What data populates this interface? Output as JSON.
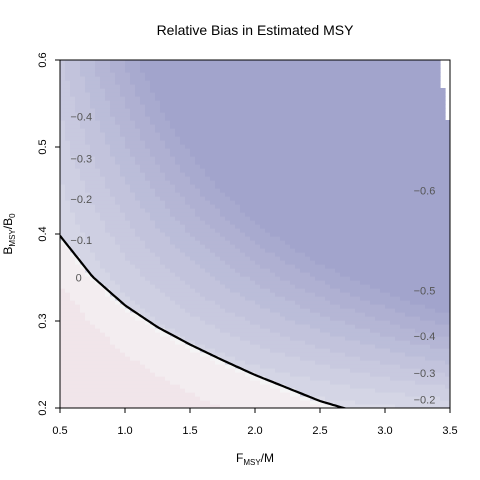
{
  "chart_data": {
    "type": "heatmap",
    "title": "Relative Bias in Estimated MSY",
    "xlabel": {
      "main": "F",
      "sub": "MSY",
      "suffix": "/M"
    },
    "ylabel": {
      "main": "B",
      "sub": "MSY",
      "mid": "/B",
      "sub2": "0"
    },
    "xlim": [
      0.5,
      3.5
    ],
    "ylim": [
      0.2,
      0.6
    ],
    "x_ticks": [
      "0.5",
      "1.0",
      "1.5",
      "2.0",
      "2.5",
      "3.0",
      "3.5"
    ],
    "y_ticks": [
      "0.2",
      "0.3",
      "0.4",
      "0.5",
      "0.6"
    ],
    "grid": false,
    "colors": {
      "high": "#f1e5ea",
      "zero": "#f4f4f5",
      "low": "#a2a4cc",
      "curve": "#000000"
    },
    "contour_labels": [
      {
        "text": "−0.4",
        "x": 0.58,
        "y": 0.535
      },
      {
        "text": "−0.3",
        "x": 0.58,
        "y": 0.487
      },
      {
        "text": "−0.2",
        "x": 0.58,
        "y": 0.44
      },
      {
        "text": "−0.1",
        "x": 0.58,
        "y": 0.393
      },
      {
        "text": "0",
        "x": 0.62,
        "y": 0.35
      },
      {
        "text": "−0.6",
        "x": 3.22,
        "y": 0.45
      },
      {
        "text": "−0.5",
        "x": 3.22,
        "y": 0.335
      },
      {
        "text": "−0.4",
        "x": 3.22,
        "y": 0.283
      },
      {
        "text": "−0.3",
        "x": 3.22,
        "y": 0.24
      },
      {
        "text": "−0.2",
        "x": 3.22,
        "y": 0.21
      }
    ],
    "boundary_curve": {
      "x": [
        0.5,
        0.75,
        1.0,
        1.25,
        1.5,
        1.75,
        2.0,
        2.25,
        2.5,
        2.75
      ],
      "y": [
        0.398,
        0.351,
        0.318,
        0.293,
        0.273,
        0.255,
        0.238,
        0.223,
        0.208,
        0.197
      ]
    }
  }
}
